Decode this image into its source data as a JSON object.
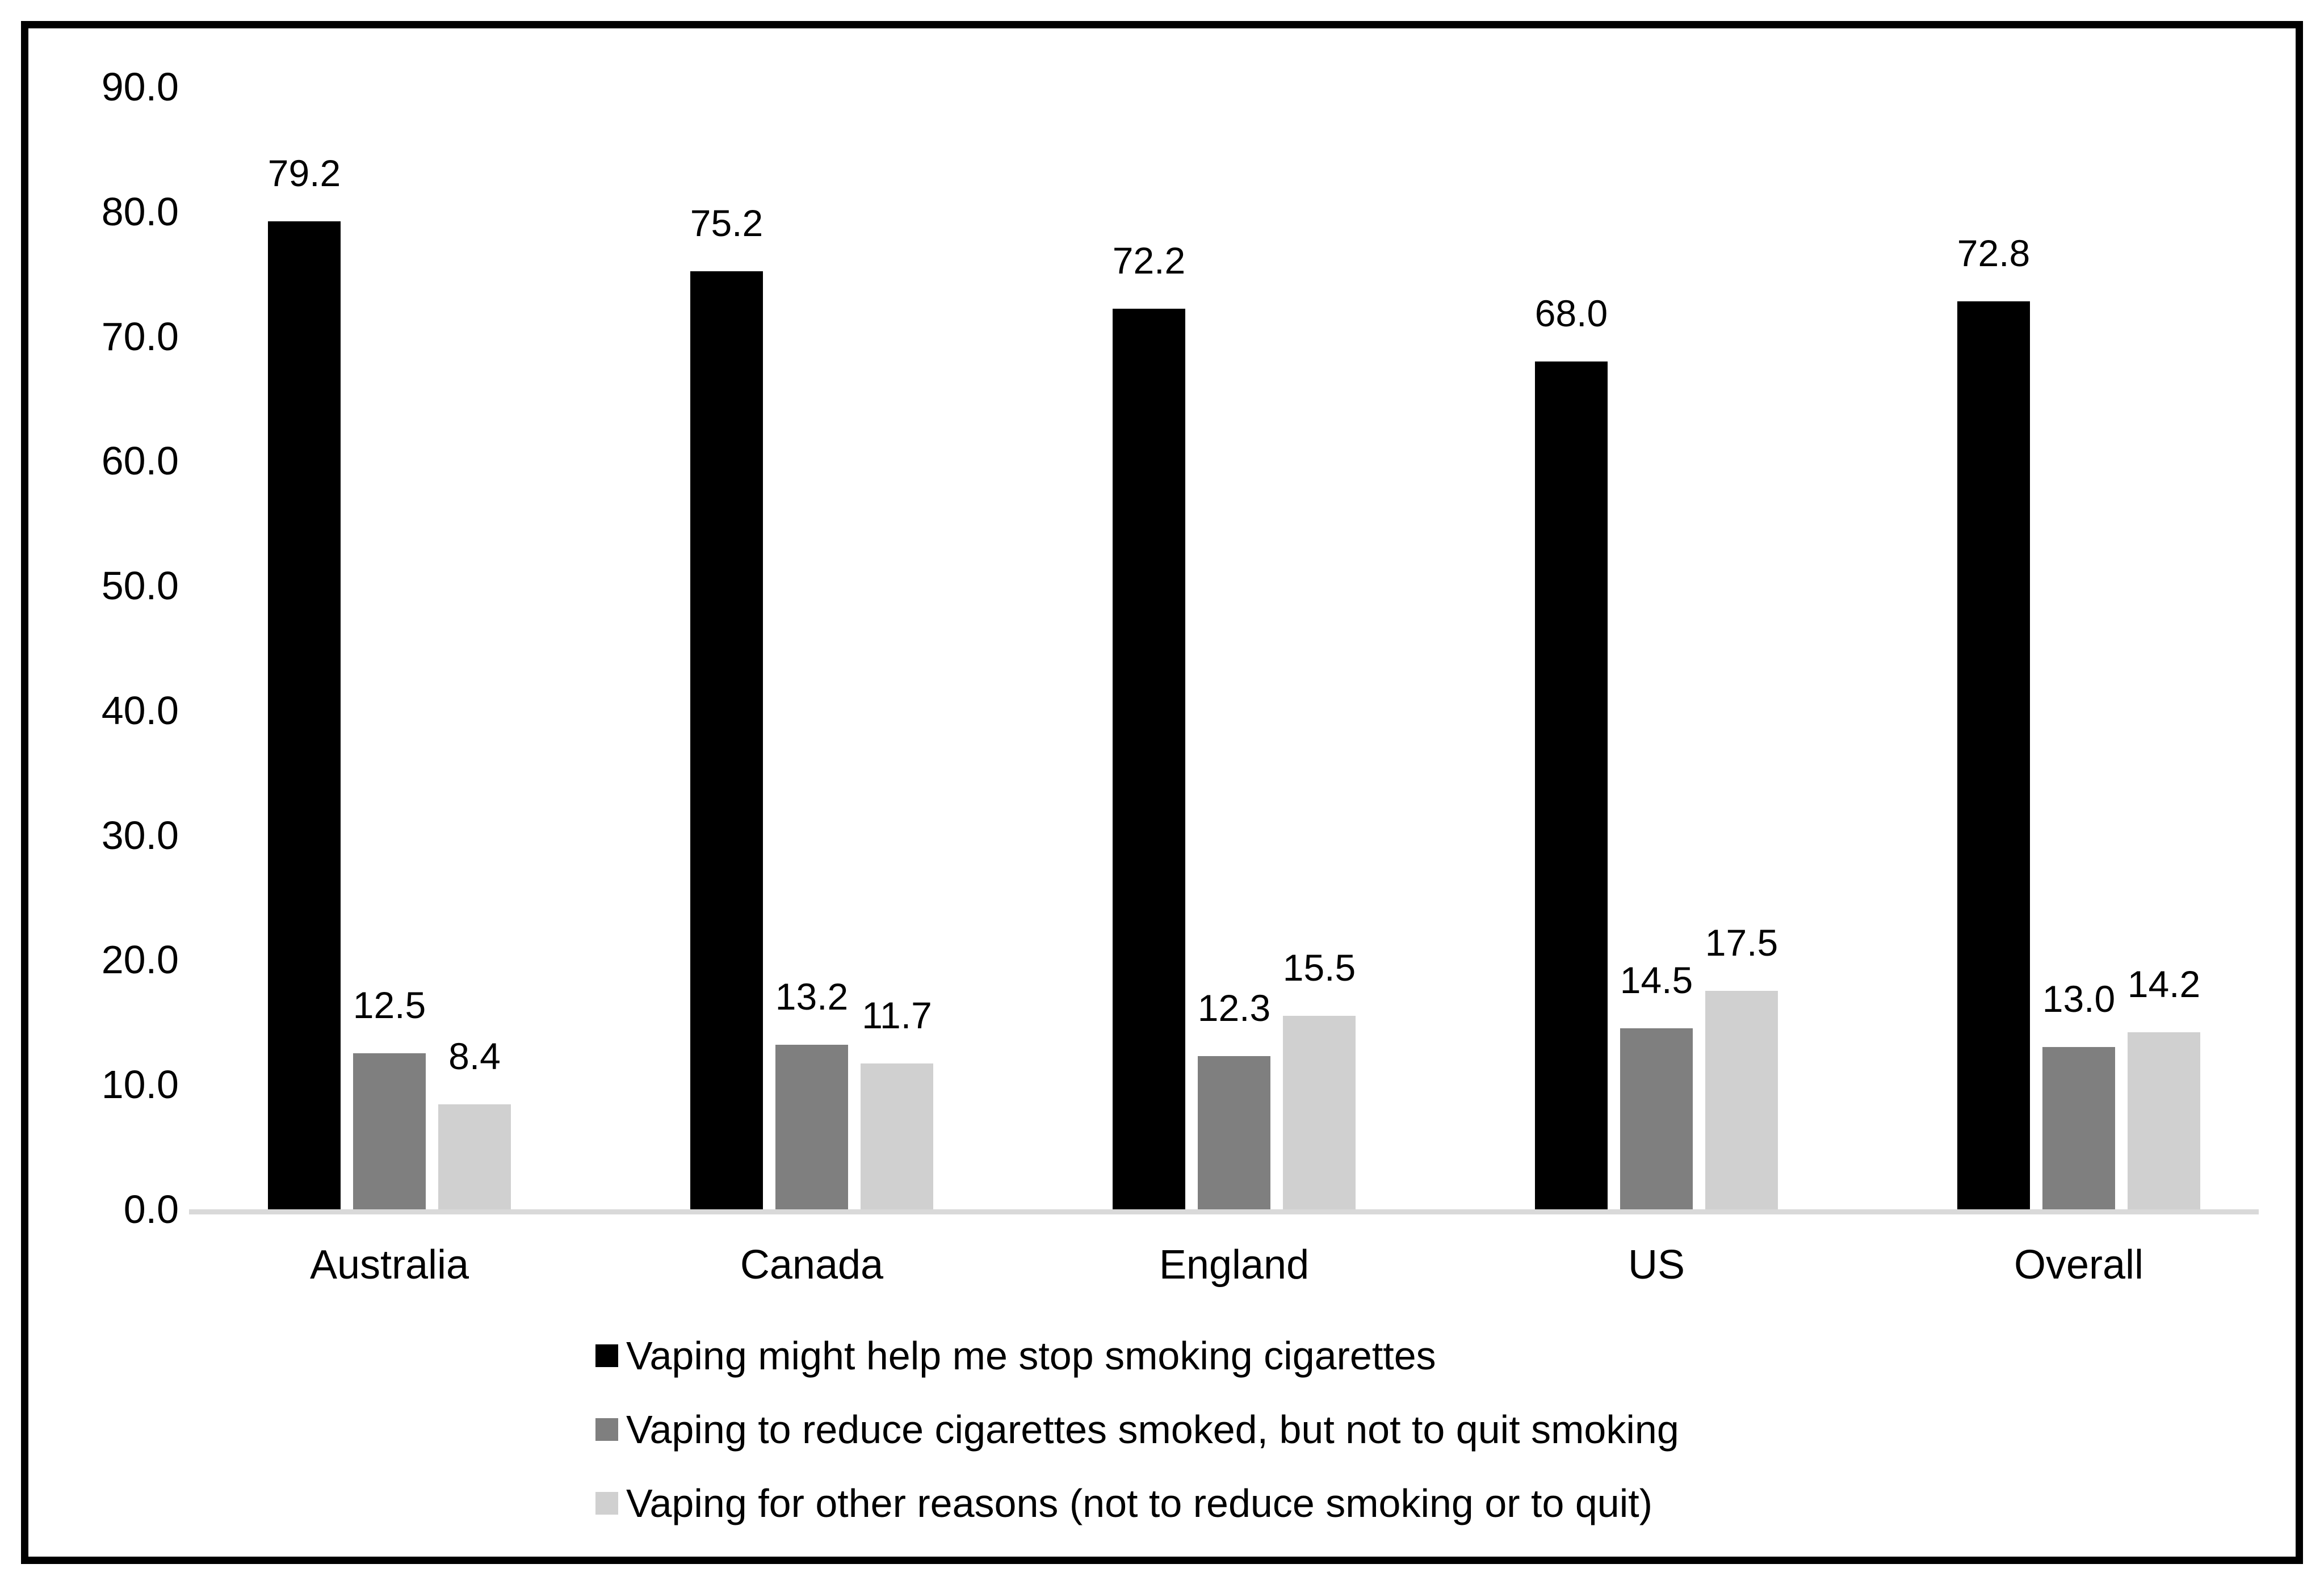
{
  "chart_data": {
    "type": "bar",
    "title": "",
    "xlabel": "",
    "ylabel": "",
    "categories": [
      "Australia",
      "Canada",
      "England",
      "US",
      "Overall"
    ],
    "series": [
      {
        "name": "Vaping might help me stop smoking cigarettes",
        "color": "#000000",
        "values": [
          79.2,
          75.2,
          72.2,
          68.0,
          72.8
        ]
      },
      {
        "name": "Vaping to reduce cigarettes smoked, but not to quit smoking",
        "color": "#7f7f7f",
        "values": [
          12.5,
          13.2,
          12.3,
          14.5,
          13.0
        ]
      },
      {
        "name": "Vaping for other reasons (not to reduce smoking or to quit)",
        "color": "#d0d0d0",
        "values": [
          8.4,
          11.7,
          15.5,
          17.5,
          14.2
        ]
      }
    ],
    "ylim": [
      0,
      90
    ],
    "ytick_step": 10,
    "ytick_labels": [
      "90.0",
      "80.0",
      "70.0",
      "60.0",
      "50.0",
      "40.0",
      "30.0",
      "20.0",
      "10.0",
      "0.0"
    ],
    "value_label_decimals": 1,
    "grid": false,
    "legend_position": "bottom-left",
    "colors": {
      "baseline": "#d9d9d9",
      "frame_border": "#000000",
      "background": "#ffffff",
      "text": "#000000"
    }
  }
}
